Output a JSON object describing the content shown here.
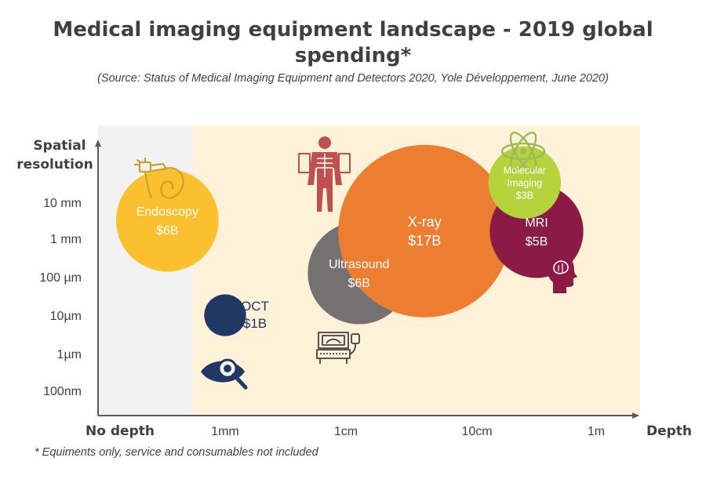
{
  "title_line1": "Medical imaging equipment landscape - 2019 global",
  "title_line2": "spending*",
  "source": "(Source: Status of Medical Imaging Equipment and Detectors 2020, Yole Développement, June 2020)",
  "footnote": "* Equiments only, service and consumables not included",
  "colors": {
    "endoscopy": "#FBC02D",
    "oct": "#1F3864",
    "ultrasound": "#767171",
    "xray": "#ED7D31",
    "molecular": "#B5D33D",
    "mri": "#8B1A45",
    "background_depth": "#FFF2D8",
    "background_nodepth": "#F2F2F2",
    "icon_gold": "#C9A227",
    "icon_dark": "#404040",
    "icon_red": "#C0504D",
    "icon_navy": "#1F3864",
    "icon_maroon": "#8B1A45",
    "icon_green": "#9BBB59"
  },
  "chart_data": {
    "type": "bubble",
    "title": "Medical imaging equipment landscape - 2019 global spending*",
    "xlabel": "Depth",
    "ylabel_line1": "Spatial",
    "ylabel_line2": "resolution",
    "x_ticks": [
      "No depth",
      "1mm",
      "1cm",
      "10cm",
      "1m"
    ],
    "y_ticks": [
      "100nm",
      "1µm",
      "10µm",
      "100 µm",
      "1 mm",
      "10 mm"
    ],
    "series": [
      {
        "name_line1": "Endoscopy",
        "name_line2": "",
        "value": "$6B",
        "spending": 6,
        "x": 0.45,
        "y": 4.5,
        "color_key": "endoscopy",
        "label_position": "inside"
      },
      {
        "name_line1": "OCT",
        "name_line2": "",
        "value": "$1B",
        "spending": 1,
        "x": 1.0,
        "y": 2.0,
        "color_key": "oct",
        "label_position": "right"
      },
      {
        "name_line1": "Ultrasound",
        "name_line2": "",
        "value": "$6B",
        "spending": 6,
        "x": 2.1,
        "y": 3.1,
        "color_key": "ultrasound",
        "label_position": "inside"
      },
      {
        "name_line1": "X-ray",
        "name_line2": "",
        "value": "$17B",
        "spending": 17,
        "x": 2.6,
        "y": 4.2,
        "color_key": "xray",
        "label_position": "inside"
      },
      {
        "name_line1": "MRI",
        "name_line2": "",
        "value": "$5B",
        "spending": 5,
        "x": 3.5,
        "y": 4.2,
        "color_key": "mri",
        "label_position": "inside"
      },
      {
        "name_line1": "Molecular",
        "name_line2": "Imaging",
        "value": "$3B",
        "spending": 3,
        "x": 3.4,
        "y": 5.55,
        "color_key": "molecular",
        "label_position": "inside"
      }
    ]
  }
}
